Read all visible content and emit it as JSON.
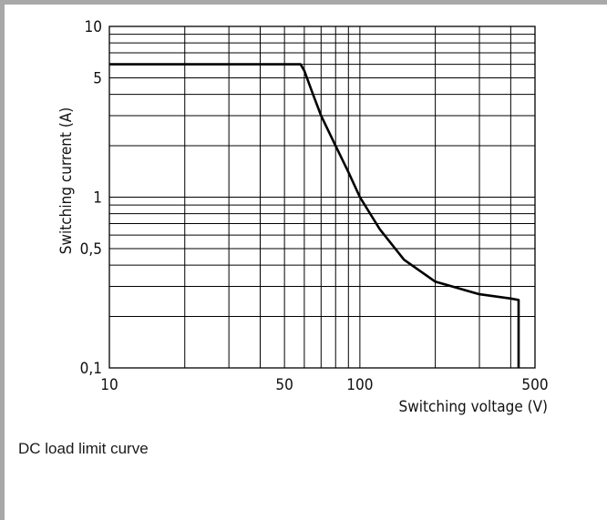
{
  "chart_data": {
    "type": "line",
    "xlabel": "Switching voltage (V)",
    "ylabel": "Switching current (A)",
    "x_scale": "log",
    "y_scale": "log",
    "xlim": [
      10,
      500
    ],
    "ylim": [
      0.1,
      10
    ],
    "x_tick_labels": [
      "10",
      "50",
      "100",
      "500"
    ],
    "x_ticks": [
      10,
      50,
      100,
      500
    ],
    "y_tick_labels": [
      "10",
      "5",
      "1",
      "0,5",
      "0,1"
    ],
    "y_ticks": [
      10,
      5,
      1,
      0.5,
      0.1
    ],
    "grid": true,
    "series": [
      {
        "x": [
          10,
          58,
          60,
          65,
          70,
          80,
          90,
          100,
          120,
          150,
          200,
          300,
          400,
          430,
          430
        ],
        "y": [
          6,
          6,
          5.5,
          4.0,
          3.0,
          2.0,
          1.4,
          1.0,
          0.65,
          0.43,
          0.32,
          0.27,
          0.255,
          0.25,
          0.1
        ]
      }
    ]
  },
  "caption": "DC load limit curve"
}
